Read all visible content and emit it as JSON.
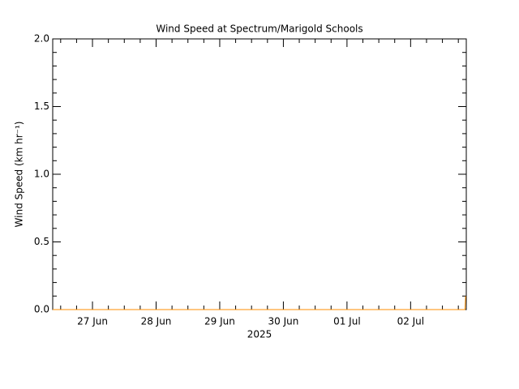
{
  "chart_data": {
    "type": "line",
    "title": "Wind Speed at Spectrum/Marigold Schools",
    "y_label": "Wind Speed (km hr⁻¹)",
    "x_label": "2025",
    "xlim": [
      "2025-06-26T09:00",
      "2025-07-02T21:00"
    ],
    "xticks": [
      {
        "value": "2025-06-27",
        "label": "27 Jun"
      },
      {
        "value": "2025-06-28",
        "label": "28 Jun"
      },
      {
        "value": "2025-06-29",
        "label": "29 Jun"
      },
      {
        "value": "2025-06-30",
        "label": "30 Jun"
      },
      {
        "value": "2025-07-01",
        "label": "01 Jul"
      },
      {
        "value": "2025-07-02",
        "label": "02 Jul"
      }
    ],
    "ylim": [
      0,
      2
    ],
    "yticks": [
      {
        "value": 0,
        "label": "0.0"
      },
      0.5,
      {
        "value": 1,
        "label": "1.0"
      },
      1.5,
      {
        "value": 2,
        "label": "2.0"
      }
    ],
    "series": [
      {
        "name": "Wind Speed",
        "color": "#ff8c00",
        "x": [
          "2025-06-26T09:00",
          "2025-07-02T20:30",
          "2025-07-02T20:45"
        ],
        "values": [
          0,
          0,
          0.1
        ]
      }
    ]
  }
}
